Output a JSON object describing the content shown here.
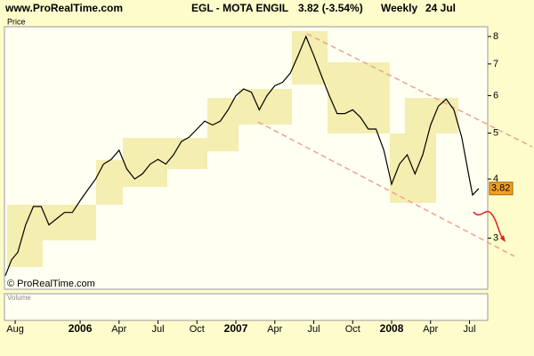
{
  "chart_data": {
    "type": "line",
    "site": "www.ProRealTime.com",
    "title": "EGL - MOTA ENGIL",
    "change": "3.82 (-3.54%)",
    "period": "Weekly",
    "date": "24 Jul",
    "ylabel": "Price",
    "copyright": "© ProRealTime.com",
    "volume_label": "Volume",
    "last_price": 3.82,
    "log_scale": true,
    "x": [
      2005.52,
      2005.56,
      2005.6,
      2005.65,
      2005.7,
      2005.75,
      2005.8,
      2005.85,
      2005.9,
      2005.95,
      2006.0,
      2006.05,
      2006.1,
      2006.15,
      2006.2,
      2006.25,
      2006.3,
      2006.35,
      2006.4,
      2006.45,
      2006.5,
      2006.55,
      2006.6,
      2006.65,
      2006.7,
      2006.75,
      2006.8,
      2006.85,
      2006.9,
      2006.95,
      2007.0,
      2007.05,
      2007.1,
      2007.15,
      2007.2,
      2007.25,
      2007.3,
      2007.35,
      2007.4,
      2007.45,
      2007.5,
      2007.55,
      2007.6,
      2007.65,
      2007.7,
      2007.75,
      2007.8,
      2007.85,
      2007.9,
      2007.95,
      2008.0,
      2008.05,
      2008.1,
      2008.15,
      2008.2,
      2008.25,
      2008.3,
      2008.35,
      2008.4,
      2008.45,
      2008.5,
      2008.52,
      2008.56
    ],
    "series": [
      {
        "name": "EGL",
        "color": "#000000",
        "values": [
          2.5,
          2.7,
          2.8,
          3.2,
          3.5,
          3.5,
          3.2,
          3.3,
          3.4,
          3.4,
          3.6,
          3.8,
          4.0,
          4.3,
          4.4,
          4.6,
          4.2,
          4.0,
          4.1,
          4.3,
          4.4,
          4.3,
          4.5,
          4.8,
          4.9,
          5.1,
          5.3,
          5.2,
          5.3,
          5.6,
          6.0,
          6.2,
          6.1,
          5.6,
          6.0,
          6.3,
          6.4,
          6.7,
          7.3,
          8.0,
          7.3,
          6.6,
          6.0,
          5.5,
          5.5,
          5.6,
          5.4,
          5.1,
          5.1,
          4.6,
          3.9,
          4.3,
          4.5,
          4.1,
          4.5,
          5.2,
          5.7,
          5.9,
          5.6,
          4.9,
          4.0,
          3.7,
          3.82
        ]
      }
    ],
    "xlim": [
      2005.514,
      2008.617
    ],
    "xticks": [
      {
        "value": 2005.583,
        "label": "Aug"
      },
      {
        "value": 2006.0,
        "label": "2006"
      },
      {
        "value": 2006.25,
        "label": "Apr"
      },
      {
        "value": 2006.5,
        "label": "Jul"
      },
      {
        "value": 2006.75,
        "label": "Oct"
      },
      {
        "value": 2007.0,
        "label": "2007"
      },
      {
        "value": 2007.25,
        "label": "Apr"
      },
      {
        "value": 2007.5,
        "label": "Jul"
      },
      {
        "value": 2007.75,
        "label": "Oct"
      },
      {
        "value": 2008.0,
        "label": "2008"
      },
      {
        "value": 2008.25,
        "label": "Apr"
      },
      {
        "value": 2008.5,
        "label": "Jul"
      }
    ],
    "ylim": [
      2.34,
      8.39
    ],
    "yticks": [
      3,
      4,
      5,
      6,
      7,
      8
    ]
  }
}
